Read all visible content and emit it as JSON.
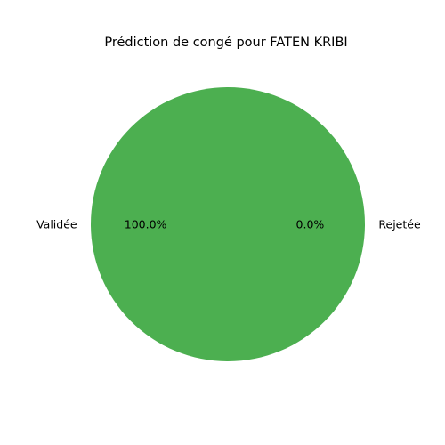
{
  "chart_data": {
    "type": "pie",
    "title": "Prédiction de congé pour FATEN KRIBI",
    "slices": [
      {
        "label": "Validée",
        "value": 100.0,
        "pct_label": "100.0%",
        "color": "#4caf50"
      },
      {
        "label": "Rejetée",
        "value": 0.0,
        "pct_label": "0.0%",
        "color": "#f44336"
      }
    ],
    "start_angle_deg": 0,
    "legend": false
  }
}
